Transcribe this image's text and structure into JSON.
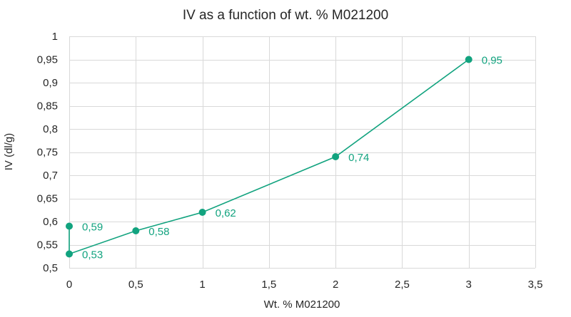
{
  "chart_data": {
    "type": "line",
    "title": "IV as a function of wt. % M021200",
    "xlabel": "Wt. % M021200",
    "ylabel": "IV (dl/g)",
    "xlim": [
      0,
      3.5
    ],
    "ylim": [
      0.5,
      1
    ],
    "x_ticks": [
      0,
      0.5,
      1,
      1.5,
      2,
      2.5,
      3,
      3.5
    ],
    "x_tick_labels": [
      "0",
      "0,5",
      "1",
      "1,5",
      "2",
      "2,5",
      "3",
      "3,5"
    ],
    "y_ticks": [
      0.5,
      0.55,
      0.6,
      0.65,
      0.7,
      0.75,
      0.8,
      0.85,
      0.9,
      0.95,
      1
    ],
    "y_tick_labels": [
      "0,5",
      "0,55",
      "0,6",
      "0,65",
      "0,7",
      "0,75",
      "0,8",
      "0,85",
      "0,9",
      "0,95",
      "1"
    ],
    "grid": true,
    "legend": "none",
    "series": [
      {
        "name": "IV",
        "color": "#12a37f",
        "points": [
          {
            "x": 0,
            "y": 0.59,
            "label": "0,59"
          },
          {
            "x": 0,
            "y": 0.53,
            "label": "0,53"
          },
          {
            "x": 0.5,
            "y": 0.58,
            "label": "0,58"
          },
          {
            "x": 1,
            "y": 0.62,
            "label": "0,62"
          },
          {
            "x": 2,
            "y": 0.74,
            "label": "0,74"
          },
          {
            "x": 3,
            "y": 0.95,
            "label": "0,95"
          }
        ]
      }
    ]
  }
}
